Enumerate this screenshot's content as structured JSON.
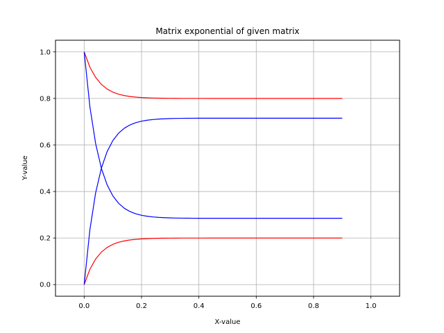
{
  "chart_data": {
    "type": "line",
    "title": "Matrix exponential of given matrix",
    "xlabel": "X-value",
    "ylabel": "Y-value",
    "xlim": [
      -0.1,
      1.1
    ],
    "ylim": [
      -0.05,
      1.05
    ],
    "grid": true,
    "x_ticks": [
      0.0,
      0.2,
      0.4,
      0.6,
      0.8,
      1.0
    ],
    "x_tick_labels": [
      "0.0",
      "0.2",
      "0.4",
      "0.6",
      "0.8",
      "1.0"
    ],
    "y_ticks": [
      0.0,
      0.2,
      0.4,
      0.6,
      0.8,
      1.0
    ],
    "y_tick_labels": [
      "0.0",
      "0.2",
      "0.4",
      "0.6",
      "0.8",
      "1.0"
    ],
    "x": [
      0.0,
      0.02,
      0.04,
      0.06,
      0.08,
      0.1,
      0.12,
      0.14,
      0.16,
      0.18,
      0.2,
      0.22,
      0.24,
      0.26,
      0.28,
      0.3,
      0.32,
      0.34,
      0.36,
      0.38,
      0.4,
      0.45,
      0.5,
      0.55,
      0.6,
      0.65,
      0.7,
      0.75,
      0.8,
      0.85,
      0.9
    ],
    "series": [
      {
        "color": "#ff0000",
        "values": [
          1.0,
          0.9341,
          0.89,
          0.8602,
          0.8404,
          0.8271,
          0.8181,
          0.8122,
          0.8082,
          0.8055,
          0.8037,
          0.8025,
          0.8017,
          0.8011,
          0.8007,
          0.8005,
          0.8003,
          0.8002,
          0.8002,
          0.8001,
          0.8001,
          0.8,
          0.8,
          0.8,
          0.8,
          0.8,
          0.8,
          0.8,
          0.8,
          0.8,
          0.8
        ]
      },
      {
        "color": "#ff0000",
        "values": [
          0.0,
          0.0659,
          0.11,
          0.1398,
          0.1596,
          0.1729,
          0.1819,
          0.1878,
          0.1918,
          0.1945,
          0.1963,
          0.1975,
          0.1983,
          0.1989,
          0.1993,
          0.1995,
          0.1997,
          0.1998,
          0.1998,
          0.1999,
          0.1999,
          0.2,
          0.2,
          0.2,
          0.2,
          0.2,
          0.2,
          0.2,
          0.2,
          0.2,
          0.2
        ]
      },
      {
        "color": "#0000ff",
        "values": [
          1.0,
          0.7637,
          0.6055,
          0.4996,
          0.4286,
          0.3811,
          0.3493,
          0.328,
          0.3138,
          0.3042,
          0.2978,
          0.2935,
          0.2907,
          0.2888,
          0.2875,
          0.2866,
          0.286,
          0.2856,
          0.2854,
          0.2852,
          0.2851,
          0.285,
          0.285,
          0.285,
          0.285,
          0.285,
          0.285,
          0.285,
          0.285,
          0.285,
          0.285
        ]
      },
      {
        "color": "#0000ff",
        "values": [
          0.0,
          0.2363,
          0.3945,
          0.5004,
          0.5714,
          0.6189,
          0.6507,
          0.672,
          0.6862,
          0.6958,
          0.7022,
          0.7065,
          0.7093,
          0.7112,
          0.7125,
          0.7134,
          0.714,
          0.7144,
          0.7146,
          0.7148,
          0.7149,
          0.715,
          0.715,
          0.715,
          0.715,
          0.715,
          0.715,
          0.715,
          0.715,
          0.715,
          0.715
        ]
      }
    ]
  }
}
